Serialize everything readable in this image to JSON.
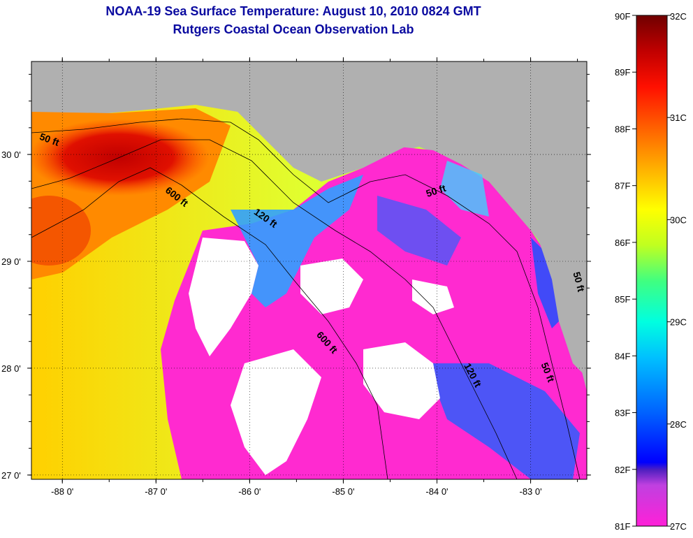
{
  "title": {
    "line1": "NOAA-19 Sea Surface Temperature:  August 10, 2010 0824 GMT",
    "line2": "Rutgers Coastal Ocean Observation Lab"
  },
  "map": {
    "lon_range": [
      -88.33,
      -82.4
    ],
    "lat_range": [
      26.96,
      30.87
    ],
    "lon_ticks": [
      "-88 0'",
      "-87 0'",
      "-86 0'",
      "-85 0'",
      "-84 0'",
      "-83 0'"
    ],
    "lon_tick_values": [
      -88,
      -87,
      -86,
      -85,
      -84,
      -83
    ],
    "lat_ticks": [
      "30 0'",
      "29 0'",
      "28 0'",
      "27 0'"
    ],
    "lat_tick_values": [
      30,
      29,
      28,
      27
    ],
    "depth_labels": [
      {
        "text": "50 ft",
        "lon": -88.15,
        "lat": 30.11,
        "angle": 20
      },
      {
        "text": "600 ft",
        "lon": -86.8,
        "lat": 29.58,
        "angle": 38
      },
      {
        "text": "120 ft",
        "lon": -85.85,
        "lat": 29.38,
        "angle": 35
      },
      {
        "text": "600 ft",
        "lon": -85.2,
        "lat": 28.22,
        "angle": 48
      },
      {
        "text": "50 ft",
        "lon": -84.0,
        "lat": 29.63,
        "angle": -18
      },
      {
        "text": "120 ft",
        "lon": -83.65,
        "lat": 27.92,
        "angle": 62
      },
      {
        "text": "50 ft",
        "lon": -82.85,
        "lat": 27.95,
        "angle": 68
      },
      {
        "text": "50 ft",
        "lon": -82.52,
        "lat": 28.8,
        "angle": 75
      }
    ],
    "colors": {
      "land": "#b0b0b0",
      "cloud": "#ffffff",
      "warm": "#ff3a00",
      "hot": "#c00000",
      "cool": "#ff2ad0"
    }
  },
  "colorbar": {
    "f_labels": [
      "90F",
      "89F",
      "88F",
      "87F",
      "86F",
      "85F",
      "84F",
      "83F",
      "82F",
      "81F"
    ],
    "c_labels": [
      "32C",
      "31C",
      "30C",
      "29C",
      "28C",
      "27C"
    ]
  }
}
